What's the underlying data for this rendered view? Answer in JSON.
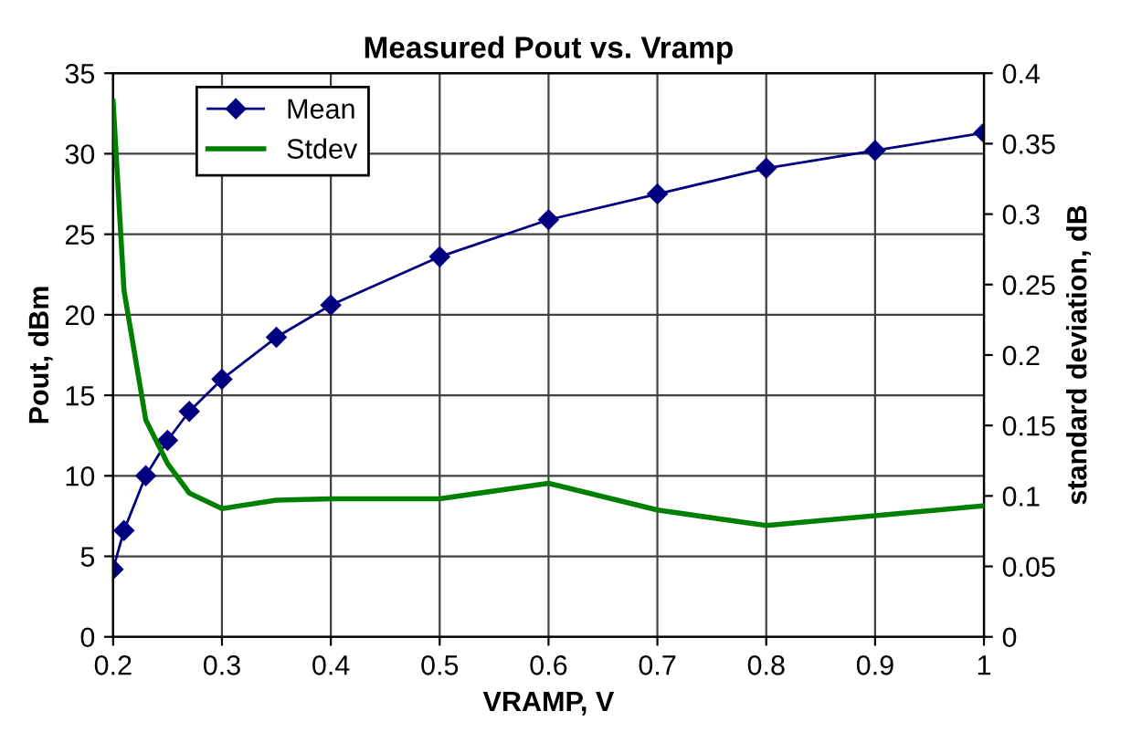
{
  "chart_data": {
    "type": "line",
    "title": "Measured Pout vs. Vramp",
    "xlabel": "VRAMP, V",
    "ylabel": "Pout, dBm",
    "y2label": "standard deviation, dB",
    "x": [
      0.2,
      0.21,
      0.23,
      0.25,
      0.27,
      0.3,
      0.35,
      0.4,
      0.5,
      0.6,
      0.7,
      0.8,
      0.9,
      1.0
    ],
    "series": [
      {
        "name": "Mean",
        "color": "#000080",
        "marker": "diamond",
        "values": [
          4.2,
          6.6,
          10,
          12.2,
          14,
          16,
          18.6,
          20.6,
          23.6,
          25.9,
          27.5,
          29.1,
          30.2,
          31.3
        ]
      },
      {
        "name": "Stdev",
        "color": "#008000",
        "marker": "none",
        "axis": "y2",
        "values": [
          0.38,
          0.246,
          0.154,
          0.123,
          0.102,
          0.091,
          0.097,
          0.098,
          0.098,
          0.109,
          0.09,
          0.079,
          0.086,
          0.093
        ]
      }
    ],
    "xlim": [
      0.2,
      1
    ],
    "xticks": [
      0.2,
      0.3,
      0.4,
      0.5,
      0.6,
      0.7,
      0.8,
      0.9,
      1
    ],
    "ylim": [
      0,
      35
    ],
    "yticks": [
      0,
      5,
      10,
      15,
      20,
      25,
      30,
      35
    ],
    "y2lim": [
      0,
      0.4
    ],
    "y2ticks": [
      0,
      0.05,
      0.1,
      0.15,
      0.2,
      0.25,
      0.3,
      0.35,
      0.4
    ],
    "grid": true,
    "legend": "top left",
    "line_style": "solid"
  }
}
